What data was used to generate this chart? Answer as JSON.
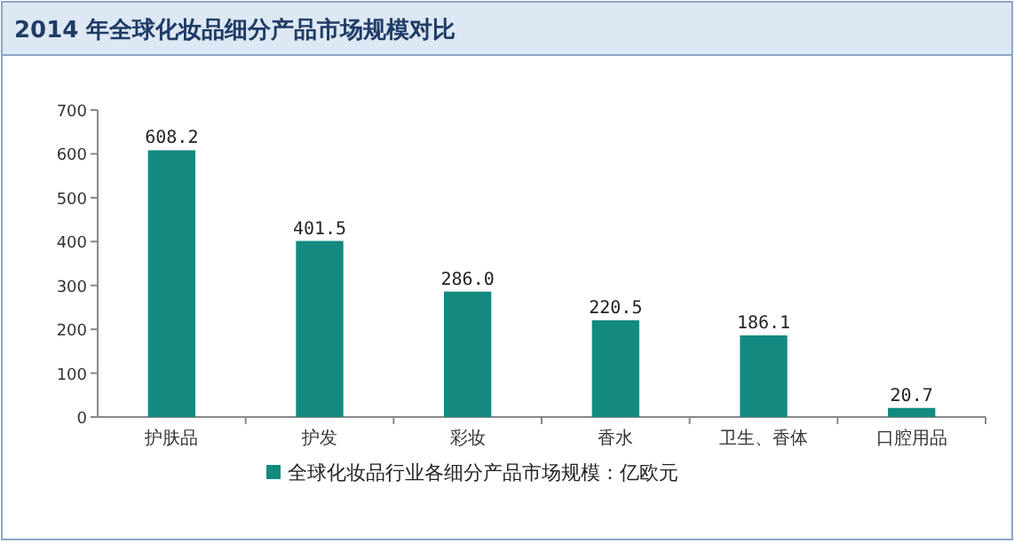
{
  "chart_data": {
    "type": "bar",
    "title": "2014 年全球化妆品细分产品市场规模对比",
    "categories": [
      "护肤品",
      "护发",
      "彩妆",
      "香水",
      "卫生、香体",
      "口腔用品"
    ],
    "series": [
      {
        "name": "全球化妆品行业各细分产品市场规模：亿欧元",
        "color": "#138a80",
        "values": [
          608.2,
          401.5,
          286.0,
          220.5,
          186.1,
          20.7
        ],
        "value_labels": [
          "608.2",
          "401.5",
          "286.0",
          "220.5",
          "186.1",
          "20.7"
        ]
      }
    ],
    "ylim": [
      0,
      700
    ],
    "yticks": [
      0,
      100,
      200,
      300,
      400,
      500,
      600,
      700
    ],
    "legend": "bottom"
  }
}
